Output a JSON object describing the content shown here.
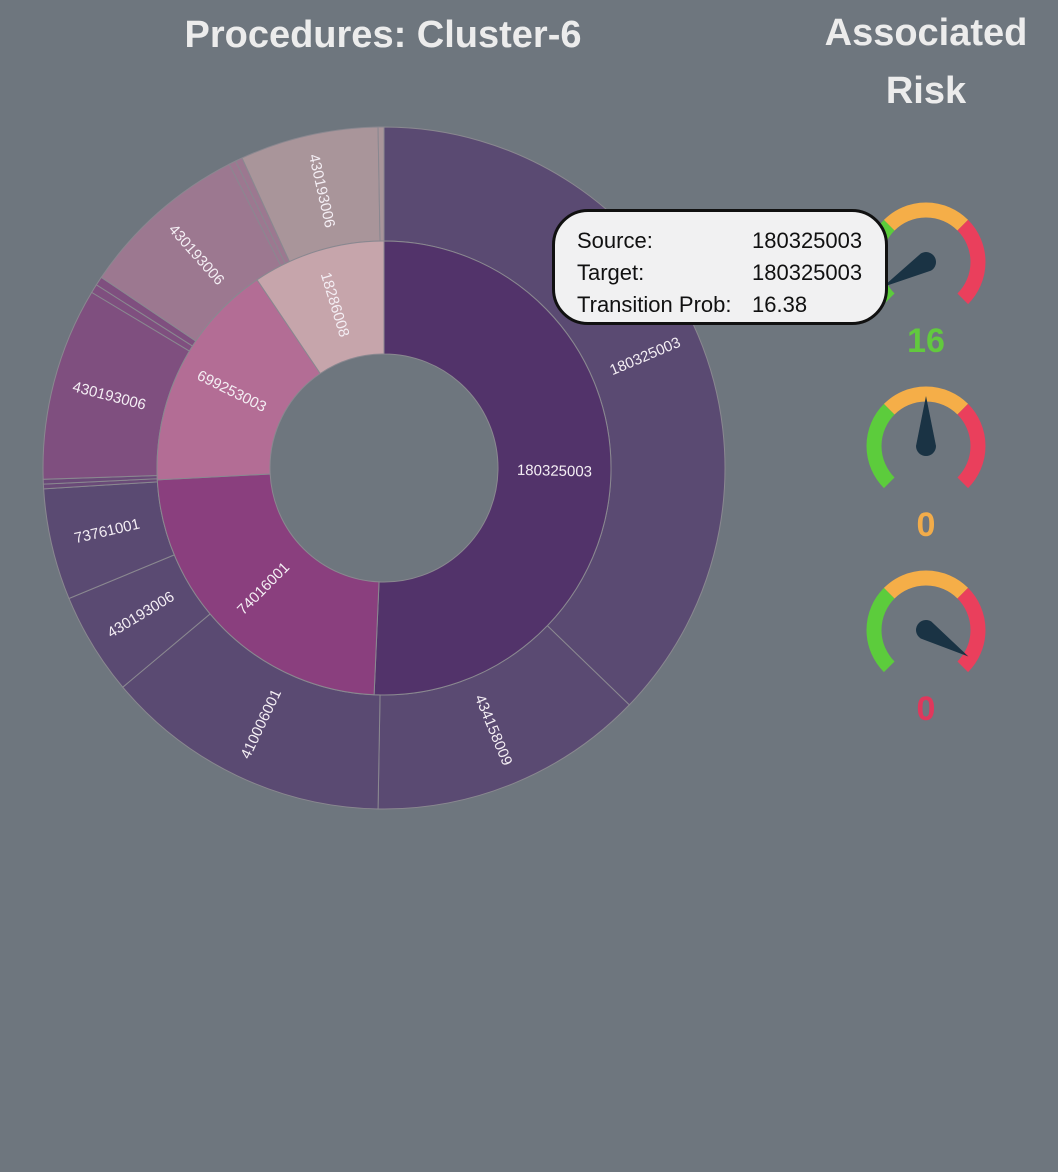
{
  "header": {
    "title": "Procedures: Cluster-6",
    "risk_title_line1": "Associated",
    "risk_title_line2": "Risk"
  },
  "chart_data": {
    "type": "sunburst",
    "title": "Procedures: Cluster-6",
    "inner_ring": [
      {
        "label": "180325003",
        "angle_start": 0,
        "angle_end": 182.5,
        "color": "#52336a"
      },
      {
        "label": "74016001",
        "angle_start": 182.5,
        "angle_end": 267,
        "color": "#8a3f7e"
      },
      {
        "label": "699253003",
        "angle_start": 267,
        "angle_end": 326,
        "color": "#b36d95"
      },
      {
        "label": "18286008",
        "angle_start": 326,
        "angle_end": 360,
        "color": "#c6a5ab"
      }
    ],
    "outer_ring": [
      {
        "label": "180325003",
        "angle_start": 0,
        "angle_end": 134,
        "color": "#5a4a72"
      },
      {
        "label": "434158009",
        "angle_start": 134,
        "angle_end": 181,
        "color": "#5a4a72"
      },
      {
        "label": "410006001",
        "angle_start": 181,
        "angle_end": 230,
        "color": "#5a4a72"
      },
      {
        "label": "430193006",
        "angle_start": 230,
        "angle_end": 247.5,
        "color": "#5a4a72"
      },
      {
        "label": "73761001",
        "angle_start": 247.5,
        "angle_end": 266.5,
        "color": "#5a4a72"
      },
      {
        "label": "",
        "angle_start": 266.5,
        "angle_end": 267.3,
        "color": "#6a4a78"
      },
      {
        "label": "",
        "angle_start": 267.3,
        "angle_end": 268.1,
        "color": "#6a4a78"
      },
      {
        "label": "430193006",
        "angle_start": 268.1,
        "angle_end": 301,
        "color": "#7f4f7f"
      },
      {
        "label": "",
        "angle_start": 301,
        "angle_end": 302.5,
        "color": "#7f4f7f"
      },
      {
        "label": "",
        "angle_start": 302.5,
        "angle_end": 304,
        "color": "#7f4f7f"
      },
      {
        "label": "430193006",
        "angle_start": 304,
        "angle_end": 333,
        "color": "#9c7890"
      },
      {
        "label": "",
        "angle_start": 333,
        "angle_end": 334.2,
        "color": "#9c7890"
      },
      {
        "label": "",
        "angle_start": 334.2,
        "angle_end": 335.4,
        "color": "#9c7890"
      },
      {
        "label": "430193006",
        "angle_start": 335.4,
        "angle_end": 359,
        "color": "#a9959a"
      },
      {
        "label": "",
        "angle_start": 359,
        "angle_end": 360,
        "color": "#a9959a"
      }
    ]
  },
  "tooltip": {
    "source_label": "Source:",
    "source_value": "180325003",
    "target_label": "Target:",
    "target_value": "180325003",
    "prob_label": "Transition Prob:",
    "prob_value": "16.38"
  },
  "gauges": [
    {
      "value_text": "16",
      "needle_angle": -120,
      "value_color": "#62c93e"
    },
    {
      "value_text": "0",
      "needle_angle": 0,
      "value_color": "#f2ac4a"
    },
    {
      "value_text": "0",
      "needle_angle": 122,
      "value_color": "#e0385c"
    }
  ],
  "colors": {
    "background": "#6e767e",
    "gauge_green": "#5ccc3c",
    "gauge_orange": "#f5ae48",
    "gauge_red": "#ea3f5c",
    "needle": "#1a3344",
    "separator": "#8a8890"
  }
}
